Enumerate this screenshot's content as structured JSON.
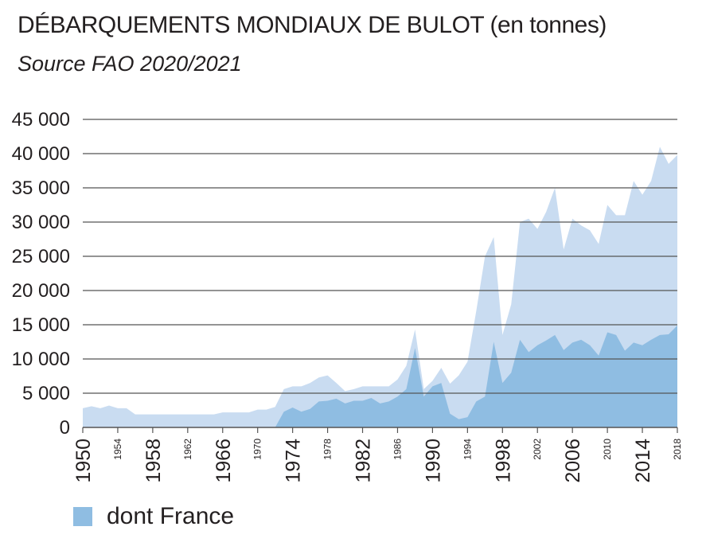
{
  "title": "DÉBARQUEMENTS MONDIAUX DE BULOT",
  "title_unit": "(en tonnes)",
  "subtitle": "Source FAO 2020/2021",
  "colors": {
    "total": "#c9dcf1",
    "france": "#8fbde2",
    "grid": "#555555",
    "text": "#231f20"
  },
  "chart_data": {
    "type": "area",
    "title": "DÉBARQUEMENTS MONDIAUX DE BULOT (en tonnes)",
    "subtitle": "Source FAO 2020/2021",
    "xlim": [
      1950,
      2018
    ],
    "ylim": [
      0,
      45000
    ],
    "grid": true,
    "legend_position": "bottom-left",
    "y_ticks": [
      0,
      5000,
      10000,
      15000,
      20000,
      25000,
      30000,
      35000,
      40000,
      45000
    ],
    "y_tick_labels": [
      "0",
      "5 000",
      "10 000",
      "15 000",
      "20 000",
      "25 000",
      "30 000",
      "35 000",
      "40 000",
      "45 000"
    ],
    "x_ticks": [
      {
        "label": "1950",
        "major": true
      },
      {
        "label": "1954",
        "major": false
      },
      {
        "label": "1958",
        "major": true
      },
      {
        "label": "1962",
        "major": false
      },
      {
        "label": "1966",
        "major": true
      },
      {
        "label": "1970",
        "major": false
      },
      {
        "label": "1974",
        "major": true
      },
      {
        "label": "1978",
        "major": false
      },
      {
        "label": "1982",
        "major": true
      },
      {
        "label": "1986",
        "major": false
      },
      {
        "label": "1990",
        "major": true
      },
      {
        "label": "1994",
        "major": false
      },
      {
        "label": "1998",
        "major": true
      },
      {
        "label": "2002",
        "major": false
      },
      {
        "label": "2006",
        "major": true
      },
      {
        "label": "2010",
        "major": false
      },
      {
        "label": "2014",
        "major": true
      },
      {
        "label": "2018",
        "major": false
      }
    ],
    "x": [
      1950,
      1951,
      1952,
      1953,
      1954,
      1955,
      1956,
      1957,
      1958,
      1959,
      1960,
      1961,
      1962,
      1963,
      1964,
      1965,
      1966,
      1967,
      1968,
      1969,
      1970,
      1971,
      1972,
      1973,
      1974,
      1975,
      1976,
      1977,
      1978,
      1979,
      1980,
      1981,
      1982,
      1983,
      1984,
      1985,
      1986,
      1987,
      1988,
      1989,
      1990,
      1991,
      1992,
      1993,
      1994,
      1995,
      1996,
      1997,
      1998,
      1999,
      2000,
      2001,
      2002,
      2003,
      2004,
      2005,
      2006,
      2007,
      2008,
      2009,
      2010,
      2011,
      2012,
      2013,
      2014,
      2015,
      2016,
      2017,
      2018
    ],
    "series": [
      {
        "values": [
          2800,
          3100,
          2800,
          3200,
          2800,
          2800,
          1900,
          1900,
          1900,
          1900,
          1900,
          1900,
          1900,
          1900,
          1900,
          1900,
          2200,
          2200,
          2200,
          2200,
          2600,
          2600,
          3000,
          5600,
          6000,
          6000,
          6500,
          7300,
          7600,
          6500,
          5300,
          5600,
          6000,
          6000,
          6000,
          6000,
          7000,
          9000,
          14300,
          5600,
          6800,
          8700,
          6400,
          7600,
          9600,
          17000,
          25000,
          27800,
          13500,
          18000,
          30000,
          30500,
          29000,
          31500,
          35000,
          26000,
          30500,
          29500,
          28800,
          26800,
          32500,
          31000,
          31000,
          36000,
          34000,
          36000,
          41000,
          38500,
          39800
        ]
      },
      {
        "name": "dont France",
        "values": [
          0,
          0,
          0,
          0,
          0,
          0,
          0,
          0,
          0,
          0,
          0,
          0,
          0,
          0,
          0,
          0,
          0,
          0,
          0,
          0,
          0,
          0,
          0,
          2300,
          2900,
          2300,
          2700,
          3800,
          3900,
          4200,
          3500,
          3900,
          3900,
          4300,
          3500,
          3800,
          4500,
          5600,
          11600,
          4500,
          6000,
          6500,
          2000,
          1200,
          1500,
          3800,
          4500,
          12500,
          6500,
          8000,
          12800,
          11000,
          12000,
          12700,
          13500,
          11300,
          12400,
          12800,
          12000,
          10500,
          13900,
          13500,
          11200,
          12400,
          12000,
          12800,
          13500,
          13600,
          14900
        ]
      }
    ]
  }
}
